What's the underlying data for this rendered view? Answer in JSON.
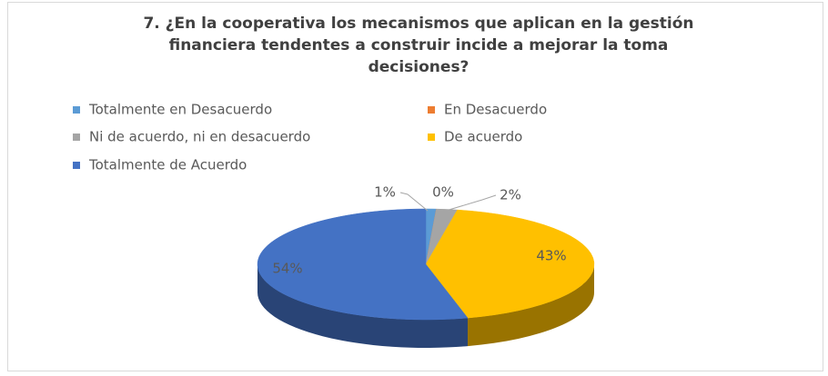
{
  "chart_data": {
    "type": "pie",
    "title": "7. ¿En la cooperativa los mecanismos que aplican en la gestión financiera tendentes a construir incide a mejorar la toma decisiones?",
    "categories": [
      "Totalmente en Desacuerdo",
      "En Desacuerdo",
      "Ni de acuerdo, ni en desacuerdo",
      "De acuerdo",
      "Totalmente de Acuerdo"
    ],
    "values": [
      1,
      0,
      2,
      43,
      54
    ],
    "value_labels": [
      "1%",
      "0%",
      "2%",
      "43%",
      "54%"
    ],
    "colors": [
      "#5b9bd5",
      "#ed7d31",
      "#a5a5a5",
      "#ffc000",
      "#4472c4"
    ]
  }
}
